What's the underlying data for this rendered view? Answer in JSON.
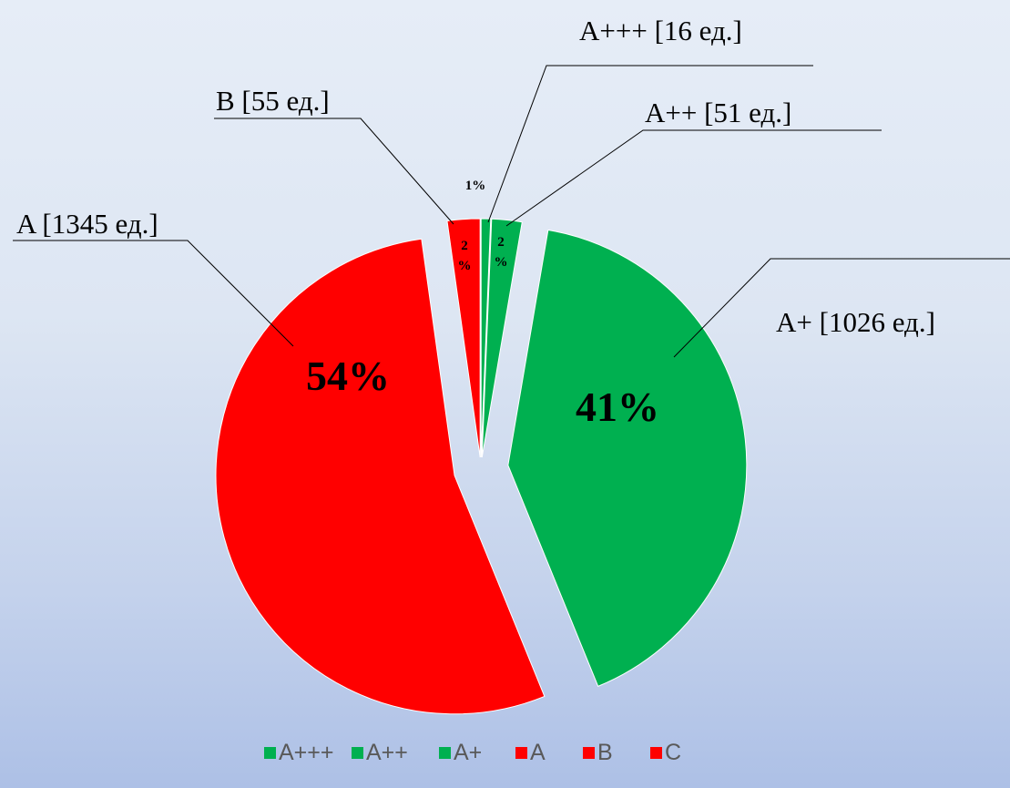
{
  "chart_data": {
    "type": "pie",
    "categories": [
      "A+++",
      "A++",
      "A+",
      "A",
      "B",
      "C"
    ],
    "values": [
      16,
      51,
      1026,
      1345,
      55,
      0
    ],
    "percent_labels": [
      "1%",
      "2%",
      "41%",
      "54%",
      "2%",
      ""
    ],
    "callout_labels": [
      "A+++ [16 ед.]",
      "A++ [51 ед.]",
      "A+ [1026 ед.]",
      "A [1345 ед.]",
      "B [55 ед.]",
      ""
    ],
    "colors": [
      "#00b050",
      "#00b050",
      "#00b050",
      "#ff0000",
      "#ff0000",
      "#ff0000"
    ],
    "exploded": true,
    "legend_position": "bottom"
  }
}
